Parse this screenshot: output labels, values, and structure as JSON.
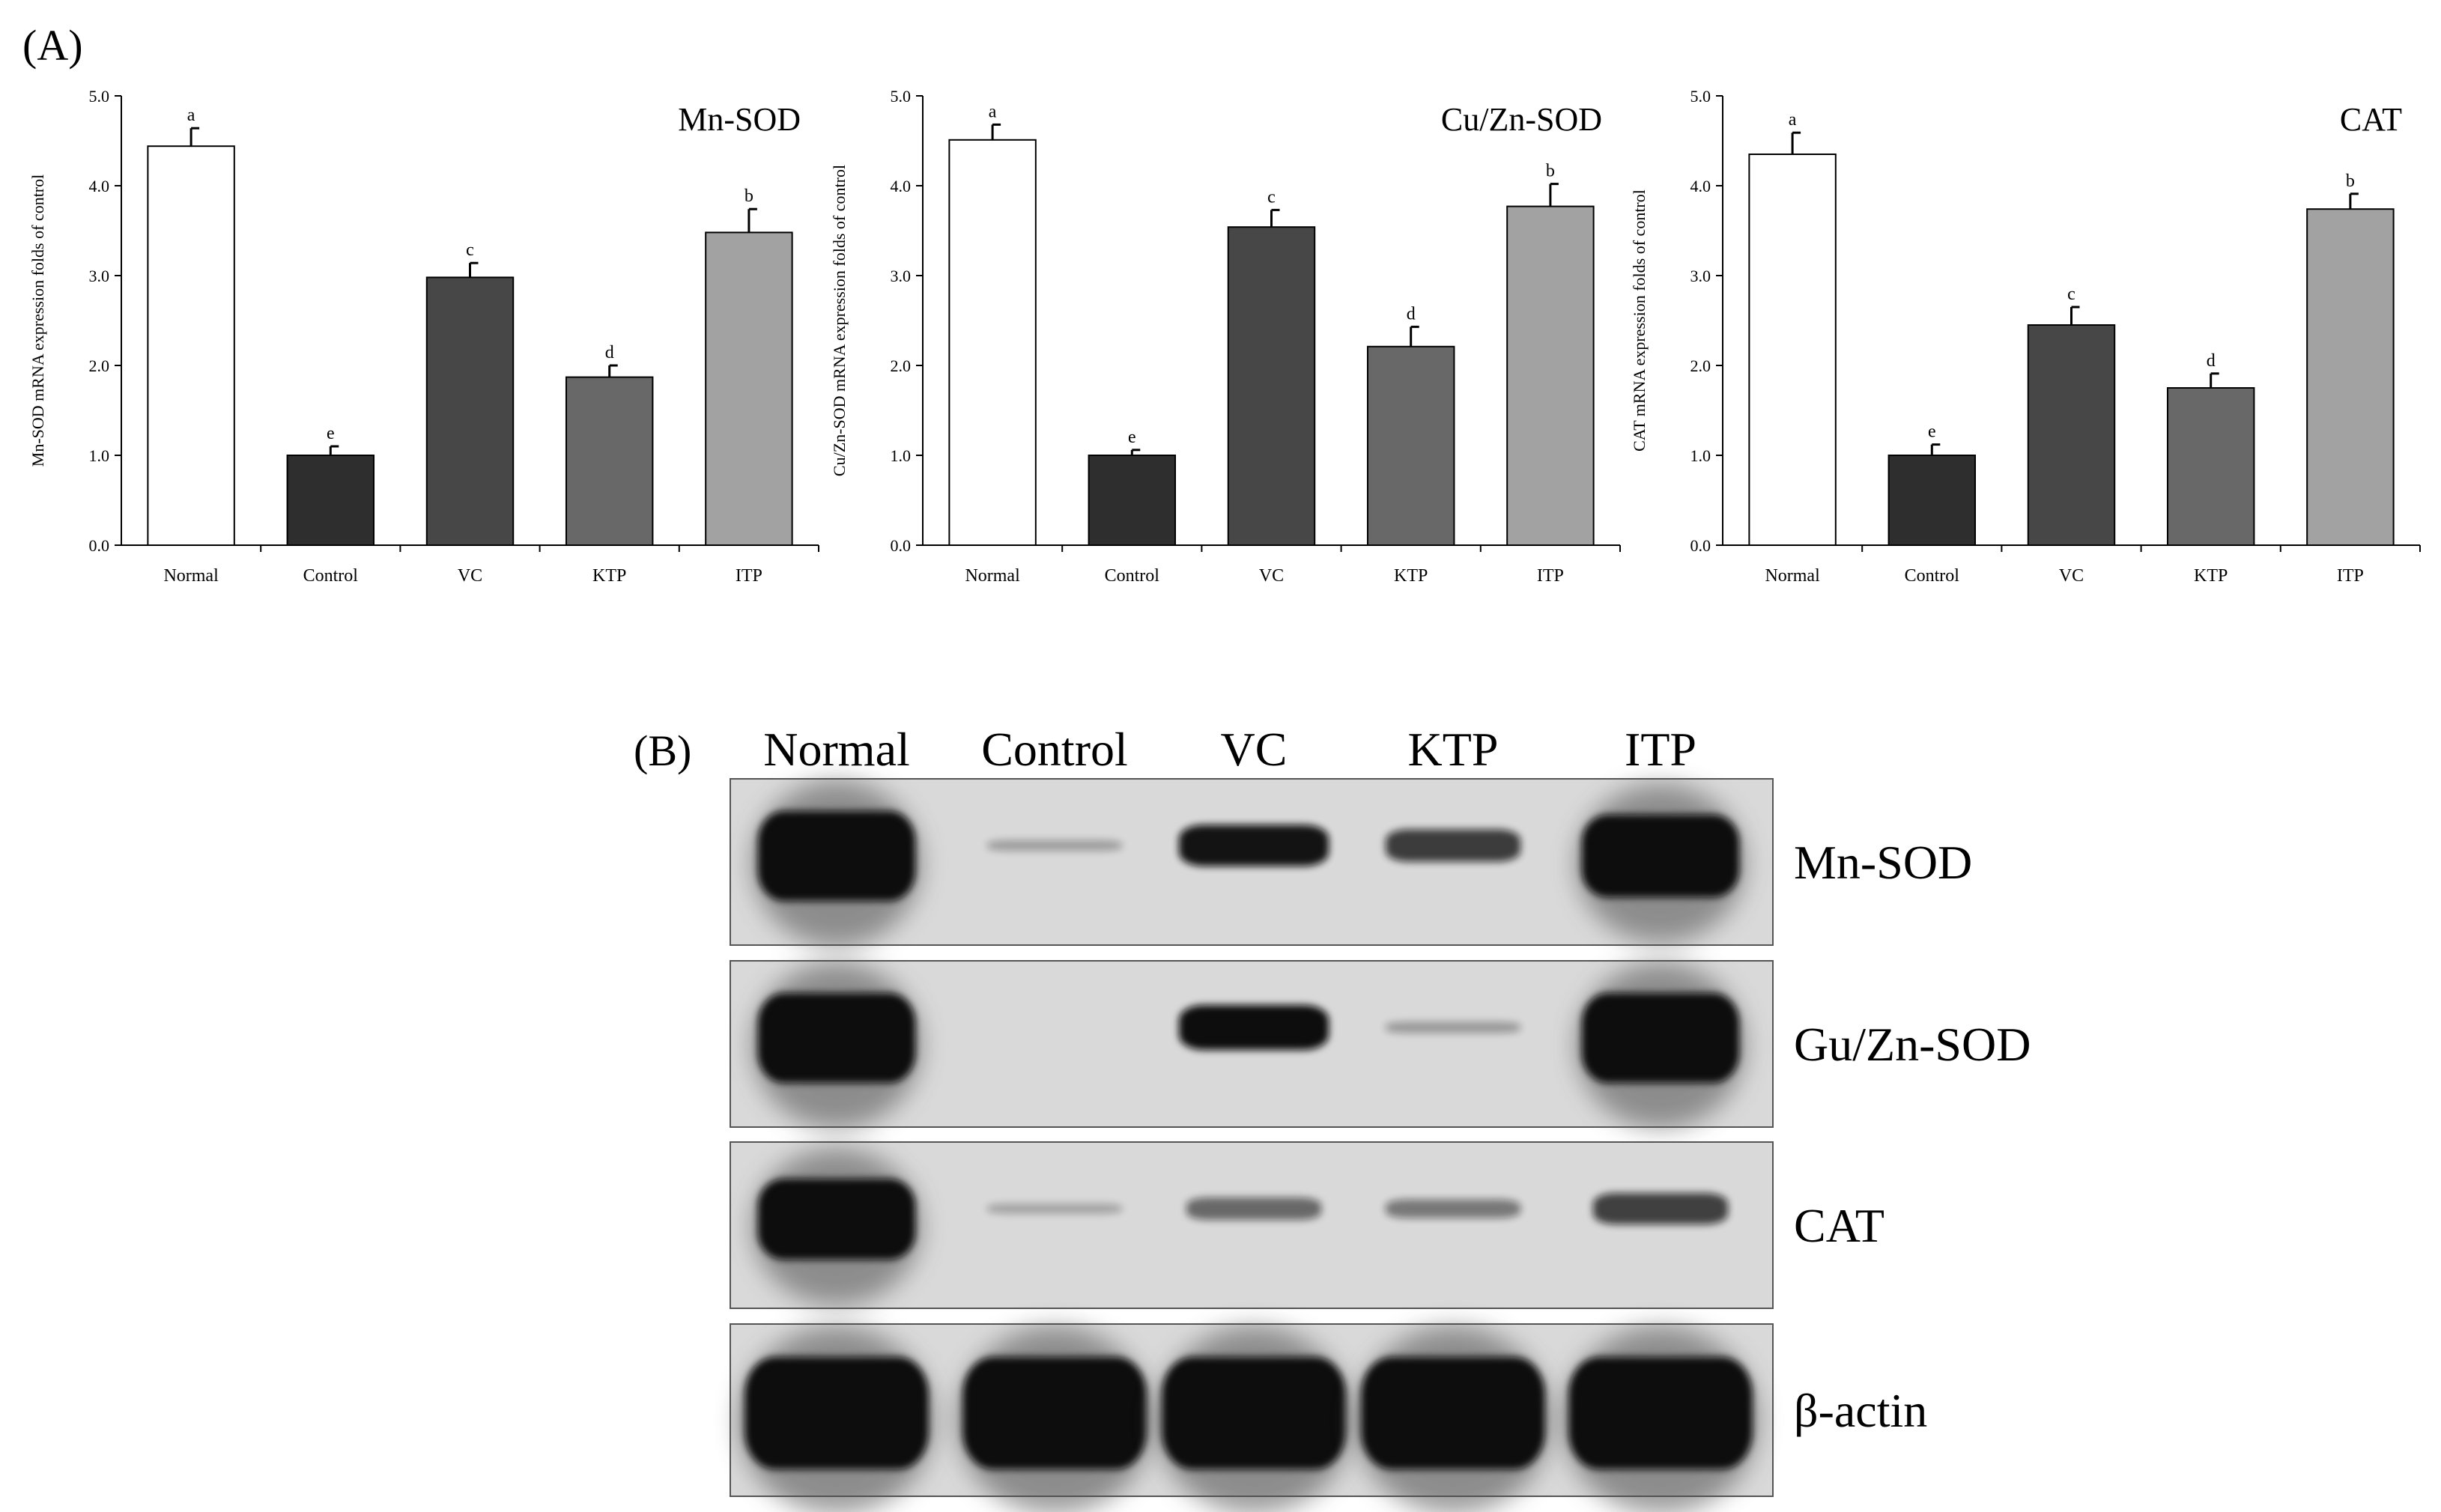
{
  "panel_a_label": "(A)",
  "panel_b_label": "(B)",
  "chart_data": [
    {
      "type": "bar",
      "title": "Mn-SOD",
      "xlabel": "",
      "ylabel": "Mn-SOD mRNA expression folds of control",
      "ylim": [
        0,
        5
      ],
      "yticks": [
        "0.0",
        "1.0",
        "2.0",
        "3.0",
        "4.0",
        "5.0"
      ],
      "categories": [
        "Normal",
        "Control",
        "VC",
        "KTP",
        "ITP"
      ],
      "values": [
        4.44,
        1.0,
        2.98,
        1.87,
        3.48
      ],
      "errors": [
        0.2,
        0.1,
        0.16,
        0.13,
        0.26
      ],
      "significance": [
        "a",
        "e",
        "c",
        "d",
        "b"
      ],
      "colors": [
        "#ffffff",
        "#2e2e2e",
        "#474747",
        "#686868",
        "#a2a2a2"
      ]
    },
    {
      "type": "bar",
      "title": "Cu/Zn-SOD",
      "xlabel": "",
      "ylabel": "Cu/Zn-SOD mRNA expression folds of control",
      "ylim": [
        0,
        5
      ],
      "yticks": [
        "0.0",
        "1.0",
        "2.0",
        "3.0",
        "4.0",
        "5.0"
      ],
      "categories": [
        "Normal",
        "Control",
        "VC",
        "KTP",
        "ITP"
      ],
      "values": [
        4.51,
        1.0,
        3.54,
        2.21,
        3.77
      ],
      "errors": [
        0.17,
        0.06,
        0.19,
        0.22,
        0.25
      ],
      "significance": [
        "a",
        "e",
        "c",
        "d",
        "b"
      ],
      "colors": [
        "#ffffff",
        "#2e2e2e",
        "#474747",
        "#686868",
        "#a2a2a2"
      ]
    },
    {
      "type": "bar",
      "title": "CAT",
      "xlabel": "",
      "ylabel": "CAT mRNA expression folds of control",
      "ylim": [
        0,
        5
      ],
      "yticks": [
        "0.0",
        "1.0",
        "2.0",
        "3.0",
        "4.0",
        "5.0"
      ],
      "categories": [
        "Normal",
        "Control",
        "VC",
        "KTP",
        "ITP"
      ],
      "values": [
        4.35,
        1.0,
        2.45,
        1.75,
        3.74
      ],
      "errors": [
        0.24,
        0.12,
        0.2,
        0.16,
        0.17
      ],
      "significance": [
        "a",
        "e",
        "c",
        "d",
        "b"
      ],
      "colors": [
        "#ffffff",
        "#2e2e2e",
        "#474747",
        "#686868",
        "#a2a2a2"
      ]
    }
  ],
  "western_blot": {
    "lanes": [
      "Normal",
      "Control",
      "VC",
      "KTP",
      "ITP"
    ],
    "blots": [
      {
        "protein": "Mn-SOD",
        "intensities": [
          1.0,
          0.04,
          0.72,
          0.52,
          0.92
        ]
      },
      {
        "protein": "Gu/Zn-SOD",
        "intensities": [
          1.0,
          0.0,
          0.8,
          0.06,
          1.0
        ]
      },
      {
        "protein": "CAT",
        "intensities": [
          0.9,
          0.02,
          0.3,
          0.22,
          0.5
        ]
      },
      {
        "protein": "β-actin",
        "intensities": [
          1.0,
          1.0,
          1.0,
          1.0,
          1.0
        ]
      }
    ]
  }
}
